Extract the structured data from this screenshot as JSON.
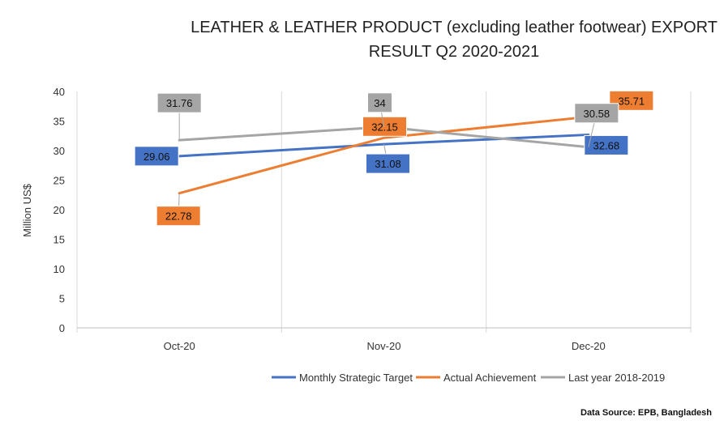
{
  "chart_data": {
    "type": "line",
    "title": [
      "LEATHER & LEATHER PRODUCT (excluding leather footwear) EXPORT",
      "RESULT Q2 2020-2021"
    ],
    "xlabel": "",
    "ylabel": "Million US$",
    "ylim": [
      0,
      40
    ],
    "yticks": [
      0,
      5,
      10,
      15,
      20,
      25,
      30,
      35,
      40
    ],
    "categories": [
      "Oct-20",
      "Nov-20",
      "Dec-20"
    ],
    "series": [
      {
        "name": "Monthly Strategic Target",
        "color": "#4472C4",
        "values": [
          29.06,
          31.08,
          32.68
        ],
        "labels": [
          "29.06",
          "31.08",
          "32.68"
        ]
      },
      {
        "name": "Actual Achievement",
        "color": "#ED7D31",
        "values": [
          22.78,
          32.15,
          35.71
        ],
        "labels": [
          "22.78",
          "32.15",
          "35.71"
        ]
      },
      {
        "name": "Last year 2018-2019",
        "color": "#A5A5A5",
        "values": [
          31.76,
          34,
          30.58
        ],
        "labels": [
          "31.76",
          "34",
          "30.58"
        ]
      }
    ],
    "legend_position": "bottom-right",
    "grid": "vertical category separators",
    "source": "Data Source: EPB, Bangladesh"
  }
}
